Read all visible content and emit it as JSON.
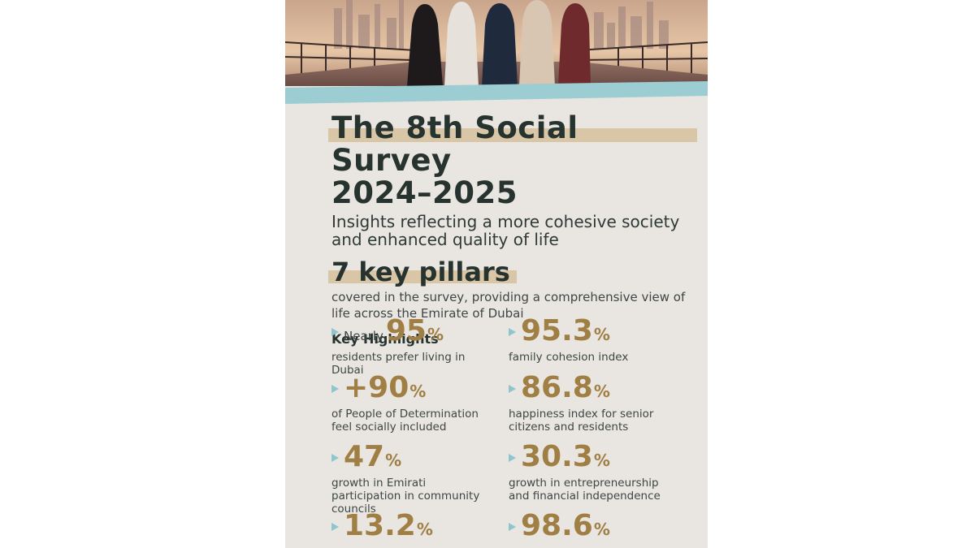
{
  "title_line1": "The 8th Social Survey",
  "title_line2": "2024–2025",
  "subtitle": "Insights reflecting a more cohesive society and enhanced quality of life",
  "pillars_heading": "7 key pillars",
  "pillars_text": "covered in the survey, providing a comprehensive view of life across the Emirate of Dubai",
  "key_highlights_title": "Key Highlights",
  "percent_sign": "%",
  "stats": [
    {
      "prefix": "Nearly",
      "value": "95",
      "desc": "residents prefer living in Dubai"
    },
    {
      "prefix": "",
      "value": "95.3",
      "desc": "family cohesion index"
    },
    {
      "prefix": "",
      "value": "+90",
      "desc": "of People of Determination feel socially included"
    },
    {
      "prefix": "",
      "value": "86.8",
      "desc": "happiness index for senior citizens and residents"
    },
    {
      "prefix": "",
      "value": "47",
      "desc": "growth in Emirati participation in community councils"
    },
    {
      "prefix": "",
      "value": "30.3",
      "desc": "growth in entrepreneurship and financial independence"
    },
    {
      "prefix": "",
      "value": "13.2",
      "desc": ""
    },
    {
      "prefix": "",
      "value": "98.6",
      "desc": ""
    }
  ],
  "colors": {
    "accent_gold": "#a07f44",
    "teal": "#9ccdd2",
    "highlight": "#d8c6a6",
    "panel": "#e9e5e1"
  }
}
